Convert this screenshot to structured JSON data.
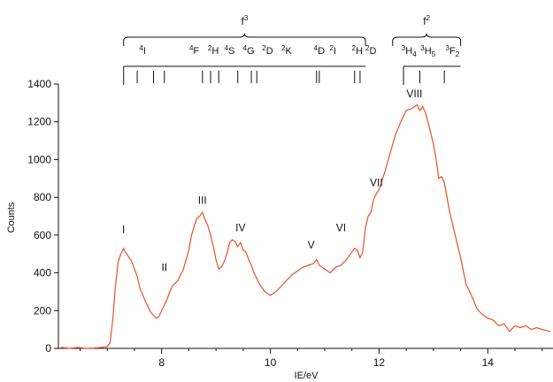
{
  "chart_data": {
    "type": "line",
    "title": "",
    "xlabel": "IE/eV",
    "ylabel": "Counts",
    "xlim": [
      6.1,
      15.2
    ],
    "ylim": [
      0,
      1400
    ],
    "xticks": [
      8,
      10,
      12,
      14
    ],
    "yticks": [
      0,
      200,
      400,
      600,
      800,
      1000,
      1200,
      1400
    ],
    "grid": false,
    "line_color": "#e8502a",
    "series": [
      {
        "name": "",
        "x": [
          6.15,
          6.3,
          6.45,
          6.6,
          6.75,
          6.9,
          7.0,
          7.05,
          7.1,
          7.15,
          7.2,
          7.25,
          7.3,
          7.33,
          7.36,
          7.4,
          7.45,
          7.5,
          7.55,
          7.6,
          7.7,
          7.8,
          7.9,
          7.95,
          8.0,
          8.05,
          8.1,
          8.15,
          8.2,
          8.3,
          8.4,
          8.5,
          8.55,
          8.6,
          8.65,
          8.7,
          8.75,
          8.8,
          8.85,
          8.9,
          8.95,
          9.0,
          9.05,
          9.1,
          9.15,
          9.2,
          9.25,
          9.3,
          9.35,
          9.4,
          9.45,
          9.5,
          9.55,
          9.6,
          9.65,
          9.7,
          9.8,
          9.9,
          10.0,
          10.1,
          10.2,
          10.3,
          10.4,
          10.5,
          10.6,
          10.7,
          10.8,
          10.85,
          10.9,
          11.0,
          11.1,
          11.2,
          11.3,
          11.4,
          11.5,
          11.55,
          11.6,
          11.65,
          11.7,
          11.75,
          11.8,
          11.85,
          11.9,
          11.95,
          12.0,
          12.1,
          12.2,
          12.3,
          12.4,
          12.5,
          12.6,
          12.7,
          12.75,
          12.8,
          12.85,
          12.9,
          13.0,
          13.05,
          13.1,
          13.15,
          13.2,
          13.3,
          13.4,
          13.5,
          13.6,
          13.7,
          13.8,
          13.9,
          14.0,
          14.1,
          14.2,
          14.3,
          14.4,
          14.5,
          14.6,
          14.7,
          14.8,
          14.9,
          15.0,
          15.15
        ],
        "y": [
          5,
          0,
          5,
          0,
          2,
          5,
          10,
          30,
          150,
          330,
          460,
          500,
          530,
          510,
          500,
          480,
          460,
          420,
          380,
          320,
          250,
          190,
          160,
          170,
          200,
          230,
          260,
          300,
          330,
          360,
          420,
          520,
          600,
          650,
          690,
          700,
          720,
          680,
          650,
          600,
          540,
          470,
          420,
          430,
          460,
          500,
          560,
          575,
          565,
          540,
          560,
          520,
          510,
          470,
          440,
          400,
          340,
          300,
          280,
          300,
          330,
          360,
          390,
          410,
          430,
          440,
          450,
          470,
          440,
          420,
          400,
          430,
          440,
          470,
          510,
          530,
          520,
          480,
          510,
          640,
          700,
          720,
          790,
          820,
          840,
          930,
          1030,
          1130,
          1200,
          1260,
          1270,
          1290,
          1260,
          1280,
          1250,
          1200,
          1080,
          1000,
          900,
          910,
          880,
          720,
          600,
          480,
          340,
          280,
          210,
          180,
          160,
          150,
          120,
          130,
          90,
          120,
          110,
          120,
          100,
          110,
          100,
          90
        ]
      }
    ],
    "peak_labels": [
      {
        "text": "I",
        "x": 7.3,
        "y": 610
      },
      {
        "text": "II",
        "x": 8.05,
        "y": 410
      },
      {
        "text": "III",
        "x": 8.75,
        "y": 765
      },
      {
        "text": "IV",
        "x": 9.45,
        "y": 620
      },
      {
        "text": "V",
        "x": 10.75,
        "y": 530
      },
      {
        "text": "VI",
        "x": 11.3,
        "y": 620
      },
      {
        "text": "VII",
        "x": 11.95,
        "y": 860
      },
      {
        "text": "VIII",
        "x": 12.65,
        "y": 1330
      }
    ],
    "annotations": {
      "f3": {
        "label": "f",
        "superscript": "3",
        "x_range": [
          7.3,
          11.75
        ],
        "terms": [
          {
            "base": "4",
            "term": "I",
            "x": 7.65
          },
          {
            "base": "4",
            "term": "F",
            "x": 8.6
          },
          {
            "base": "2",
            "term": "H",
            "x": 8.95
          },
          {
            "base": "4",
            "term": "S",
            "x": 9.25
          },
          {
            "base": "4",
            "term": "G",
            "x": 9.6
          },
          {
            "base": "2",
            "term": "D",
            "x": 9.95
          },
          {
            "base": "2",
            "term": "K",
            "x": 10.3
          },
          {
            "base": "4",
            "term": "D",
            "x": 10.9
          },
          {
            "base": "2",
            "term": "I",
            "x": 11.15
          },
          {
            "base": "2",
            "term": "H",
            "x": 11.6
          },
          {
            "base": "2",
            "term": "D",
            "x": 11.85
          }
        ],
        "long_tick": 7.3,
        "ticks": [
          7.55,
          7.85,
          8.05,
          8.75,
          8.9,
          9.05,
          9.4,
          9.65,
          9.75,
          10.85,
          10.9,
          11.55,
          11.65
        ]
      },
      "f2": {
        "label": "f",
        "superscript": "2",
        "x_range": [
          12.25,
          13.5
        ],
        "terms": [
          {
            "base": "3",
            "term": "H",
            "sub": "4",
            "x": 12.55
          },
          {
            "base": "3",
            "term": "H",
            "sub": "5",
            "x": 12.9
          },
          {
            "base": "3",
            "term": "F",
            "sub": "2",
            "x": 13.35
          }
        ],
        "long_tick": 12.45,
        "ticks": [
          12.75,
          13.2
        ]
      }
    }
  }
}
